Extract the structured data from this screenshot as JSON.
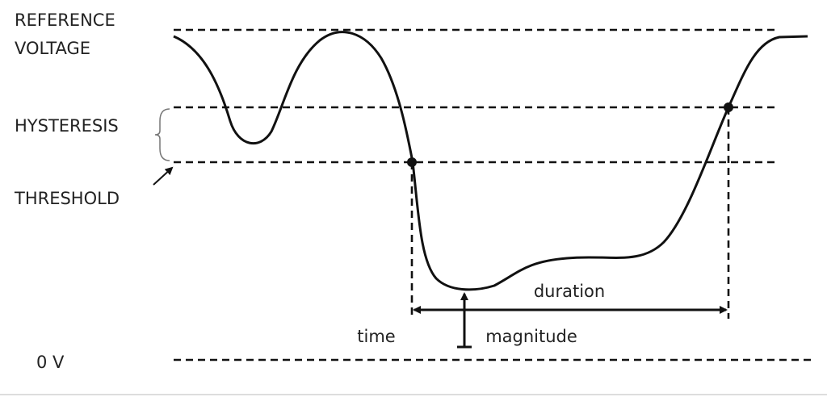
{
  "labels": {
    "reference_voltage": [
      "REFERENCE",
      "VOLTAGE"
    ],
    "hysteresis": "HYSTERESIS",
    "threshold": "THRESHOLD",
    "zero_volt": "0 V"
  },
  "annotations": {
    "duration": "duration",
    "time": "time",
    "magnitude": "magnitude"
  }
}
